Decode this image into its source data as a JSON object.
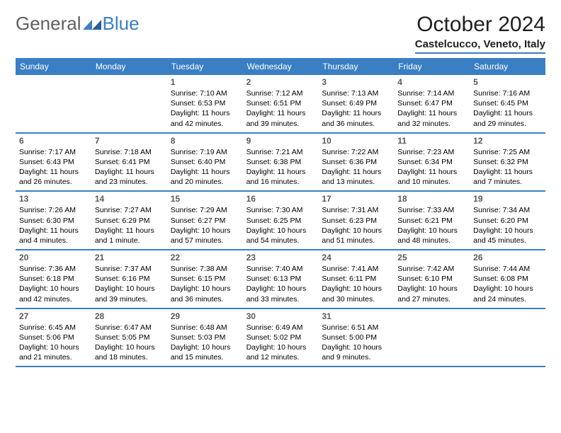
{
  "brand": {
    "part1": "General",
    "part2": "Blue"
  },
  "title": "October 2024",
  "location": "Castelcucco, Veneto, Italy",
  "colors": {
    "brand_blue": "#3a7fc4",
    "header_text": "#ffffff",
    "daynum": "#5a5a5a",
    "body_bg": "#ffffff"
  },
  "weekdays": [
    "Sunday",
    "Monday",
    "Tuesday",
    "Wednesday",
    "Thursday",
    "Friday",
    "Saturday"
  ],
  "weeks": [
    [
      {
        "n": "",
        "sunrise": "",
        "sunset": "",
        "daylight": ""
      },
      {
        "n": "",
        "sunrise": "",
        "sunset": "",
        "daylight": ""
      },
      {
        "n": "1",
        "sunrise": "Sunrise: 7:10 AM",
        "sunset": "Sunset: 6:53 PM",
        "daylight": "Daylight: 11 hours and 42 minutes."
      },
      {
        "n": "2",
        "sunrise": "Sunrise: 7:12 AM",
        "sunset": "Sunset: 6:51 PM",
        "daylight": "Daylight: 11 hours and 39 minutes."
      },
      {
        "n": "3",
        "sunrise": "Sunrise: 7:13 AM",
        "sunset": "Sunset: 6:49 PM",
        "daylight": "Daylight: 11 hours and 36 minutes."
      },
      {
        "n": "4",
        "sunrise": "Sunrise: 7:14 AM",
        "sunset": "Sunset: 6:47 PM",
        "daylight": "Daylight: 11 hours and 32 minutes."
      },
      {
        "n": "5",
        "sunrise": "Sunrise: 7:16 AM",
        "sunset": "Sunset: 6:45 PM",
        "daylight": "Daylight: 11 hours and 29 minutes."
      }
    ],
    [
      {
        "n": "6",
        "sunrise": "Sunrise: 7:17 AM",
        "sunset": "Sunset: 6:43 PM",
        "daylight": "Daylight: 11 hours and 26 minutes."
      },
      {
        "n": "7",
        "sunrise": "Sunrise: 7:18 AM",
        "sunset": "Sunset: 6:41 PM",
        "daylight": "Daylight: 11 hours and 23 minutes."
      },
      {
        "n": "8",
        "sunrise": "Sunrise: 7:19 AM",
        "sunset": "Sunset: 6:40 PM",
        "daylight": "Daylight: 11 hours and 20 minutes."
      },
      {
        "n": "9",
        "sunrise": "Sunrise: 7:21 AM",
        "sunset": "Sunset: 6:38 PM",
        "daylight": "Daylight: 11 hours and 16 minutes."
      },
      {
        "n": "10",
        "sunrise": "Sunrise: 7:22 AM",
        "sunset": "Sunset: 6:36 PM",
        "daylight": "Daylight: 11 hours and 13 minutes."
      },
      {
        "n": "11",
        "sunrise": "Sunrise: 7:23 AM",
        "sunset": "Sunset: 6:34 PM",
        "daylight": "Daylight: 11 hours and 10 minutes."
      },
      {
        "n": "12",
        "sunrise": "Sunrise: 7:25 AM",
        "sunset": "Sunset: 6:32 PM",
        "daylight": "Daylight: 11 hours and 7 minutes."
      }
    ],
    [
      {
        "n": "13",
        "sunrise": "Sunrise: 7:26 AM",
        "sunset": "Sunset: 6:30 PM",
        "daylight": "Daylight: 11 hours and 4 minutes."
      },
      {
        "n": "14",
        "sunrise": "Sunrise: 7:27 AM",
        "sunset": "Sunset: 6:29 PM",
        "daylight": "Daylight: 11 hours and 1 minute."
      },
      {
        "n": "15",
        "sunrise": "Sunrise: 7:29 AM",
        "sunset": "Sunset: 6:27 PM",
        "daylight": "Daylight: 10 hours and 57 minutes."
      },
      {
        "n": "16",
        "sunrise": "Sunrise: 7:30 AM",
        "sunset": "Sunset: 6:25 PM",
        "daylight": "Daylight: 10 hours and 54 minutes."
      },
      {
        "n": "17",
        "sunrise": "Sunrise: 7:31 AM",
        "sunset": "Sunset: 6:23 PM",
        "daylight": "Daylight: 10 hours and 51 minutes."
      },
      {
        "n": "18",
        "sunrise": "Sunrise: 7:33 AM",
        "sunset": "Sunset: 6:21 PM",
        "daylight": "Daylight: 10 hours and 48 minutes."
      },
      {
        "n": "19",
        "sunrise": "Sunrise: 7:34 AM",
        "sunset": "Sunset: 6:20 PM",
        "daylight": "Daylight: 10 hours and 45 minutes."
      }
    ],
    [
      {
        "n": "20",
        "sunrise": "Sunrise: 7:36 AM",
        "sunset": "Sunset: 6:18 PM",
        "daylight": "Daylight: 10 hours and 42 minutes."
      },
      {
        "n": "21",
        "sunrise": "Sunrise: 7:37 AM",
        "sunset": "Sunset: 6:16 PM",
        "daylight": "Daylight: 10 hours and 39 minutes."
      },
      {
        "n": "22",
        "sunrise": "Sunrise: 7:38 AM",
        "sunset": "Sunset: 6:15 PM",
        "daylight": "Daylight: 10 hours and 36 minutes."
      },
      {
        "n": "23",
        "sunrise": "Sunrise: 7:40 AM",
        "sunset": "Sunset: 6:13 PM",
        "daylight": "Daylight: 10 hours and 33 minutes."
      },
      {
        "n": "24",
        "sunrise": "Sunrise: 7:41 AM",
        "sunset": "Sunset: 6:11 PM",
        "daylight": "Daylight: 10 hours and 30 minutes."
      },
      {
        "n": "25",
        "sunrise": "Sunrise: 7:42 AM",
        "sunset": "Sunset: 6:10 PM",
        "daylight": "Daylight: 10 hours and 27 minutes."
      },
      {
        "n": "26",
        "sunrise": "Sunrise: 7:44 AM",
        "sunset": "Sunset: 6:08 PM",
        "daylight": "Daylight: 10 hours and 24 minutes."
      }
    ],
    [
      {
        "n": "27",
        "sunrise": "Sunrise: 6:45 AM",
        "sunset": "Sunset: 5:06 PM",
        "daylight": "Daylight: 10 hours and 21 minutes."
      },
      {
        "n": "28",
        "sunrise": "Sunrise: 6:47 AM",
        "sunset": "Sunset: 5:05 PM",
        "daylight": "Daylight: 10 hours and 18 minutes."
      },
      {
        "n": "29",
        "sunrise": "Sunrise: 6:48 AM",
        "sunset": "Sunset: 5:03 PM",
        "daylight": "Daylight: 10 hours and 15 minutes."
      },
      {
        "n": "30",
        "sunrise": "Sunrise: 6:49 AM",
        "sunset": "Sunset: 5:02 PM",
        "daylight": "Daylight: 10 hours and 12 minutes."
      },
      {
        "n": "31",
        "sunrise": "Sunrise: 6:51 AM",
        "sunset": "Sunset: 5:00 PM",
        "daylight": "Daylight: 10 hours and 9 minutes."
      },
      {
        "n": "",
        "sunrise": "",
        "sunset": "",
        "daylight": ""
      },
      {
        "n": "",
        "sunrise": "",
        "sunset": "",
        "daylight": ""
      }
    ]
  ]
}
